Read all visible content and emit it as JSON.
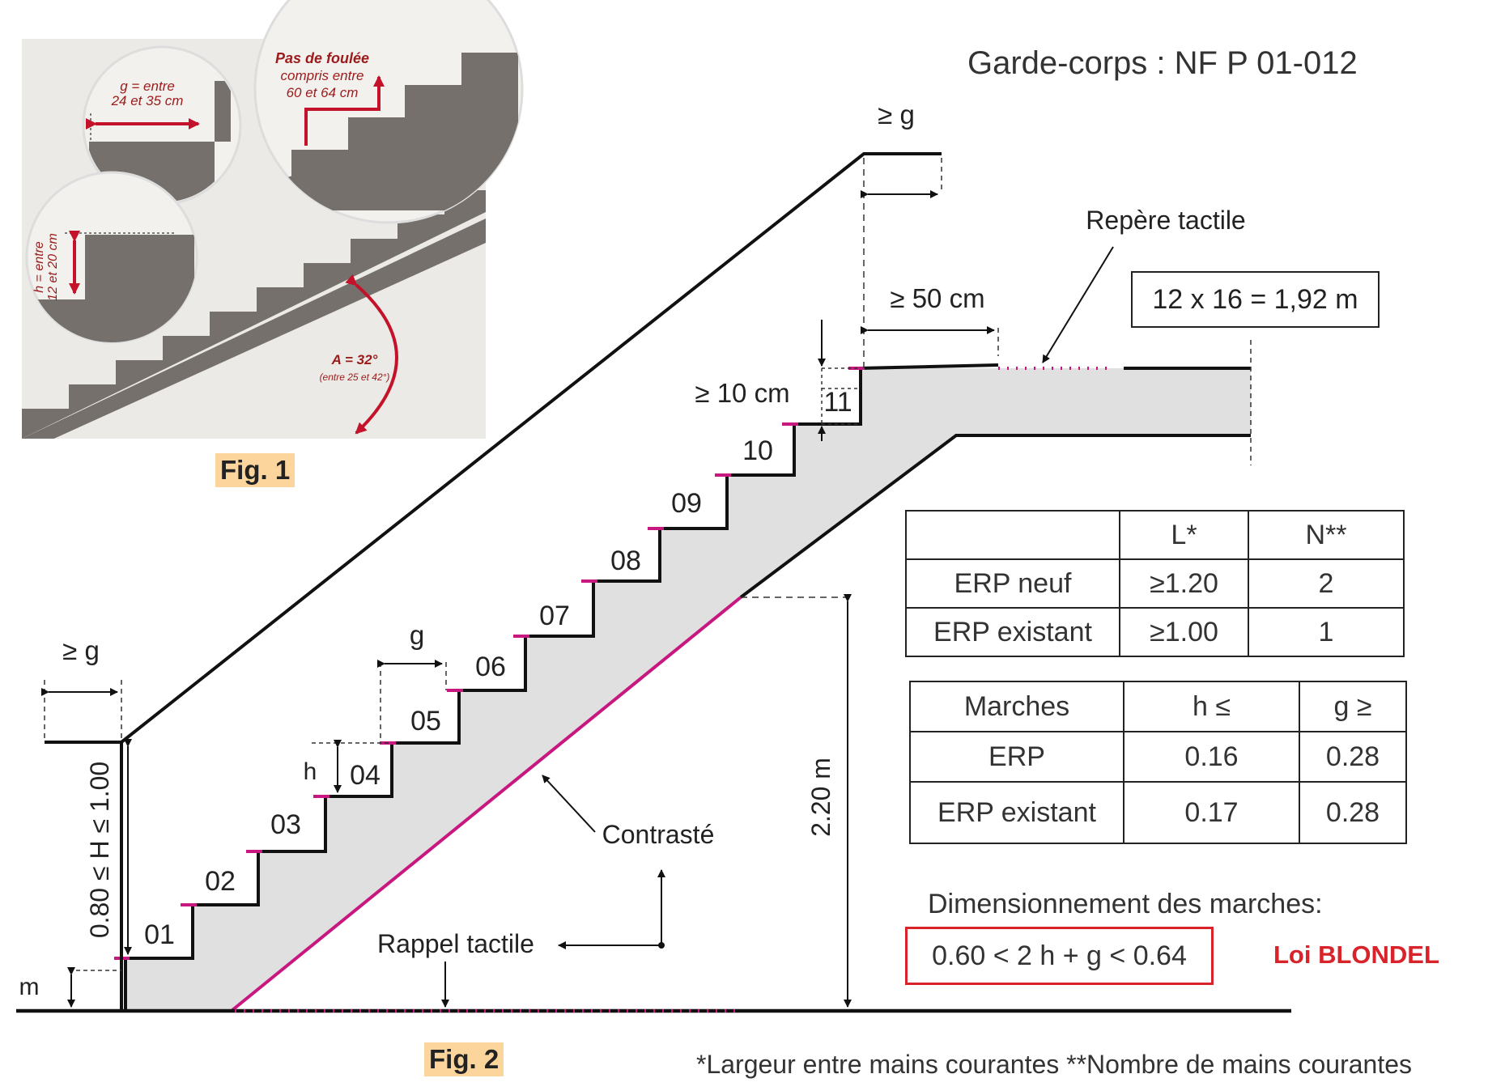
{
  "title": "Garde-corps : NF P 01-012",
  "fig1": {
    "label": "Fig. 1",
    "g_text_1": "g = entre",
    "g_text_2": "24 et 35 cm",
    "pas_text_1": "Pas de foulée",
    "pas_text_2": "compris entre",
    "pas_text_3": "60 et 64 cm",
    "h_text_1": "h = entre",
    "h_text_2": "12 et 20 cm",
    "a_text_1": "A = 32°",
    "a_text_2": "(entre 25 et 42°)"
  },
  "fig2": {
    "label": "Fig. 2",
    "steps": [
      "01",
      "02",
      "03",
      "04",
      "05",
      "06",
      "07",
      "08",
      "09",
      "10",
      "11"
    ],
    "ge_g_top": "≥ g",
    "ge_g_left": "≥ g",
    "ge_50": "≥ 50 cm",
    "ge_10": "≥ 10 cm",
    "g": "g",
    "h": "h",
    "m": "m",
    "H_range": "0.80 ≤ H ≤ 1.00",
    "height_220": "2.20 m",
    "repere": "Repère tactile",
    "landing": "12 x 16 = 1,92 m",
    "contraste": "Contrasté",
    "rappel": "Rappel tactile"
  },
  "table1": {
    "headers": [
      "",
      "L*",
      "N**"
    ],
    "rows": [
      [
        "ERP neuf",
        "≥1.20",
        "2"
      ],
      [
        "ERP existant",
        "≥1.00",
        "1"
      ]
    ]
  },
  "table2": {
    "headers": [
      "Marches",
      "h ≤",
      "g ≥"
    ],
    "rows": [
      [
        "ERP",
        "0.16",
        "0.28"
      ],
      [
        "ERP existant",
        "0.17",
        "0.28"
      ]
    ]
  },
  "blondel": {
    "title": "Dimensionnement des marches:",
    "formula": "0.60 < 2 h + g < 0.64",
    "law": "Loi BLONDEL"
  },
  "footnote": "*Largeur entre mains courantes **Nombre de mains courantes",
  "colors": {
    "accent_red": "#d8232a",
    "magenta": "#c8177f",
    "fig_label_bg": "#fbd59c",
    "stair_gray": "#e0e0e0",
    "photo_gray": "#75706b"
  }
}
